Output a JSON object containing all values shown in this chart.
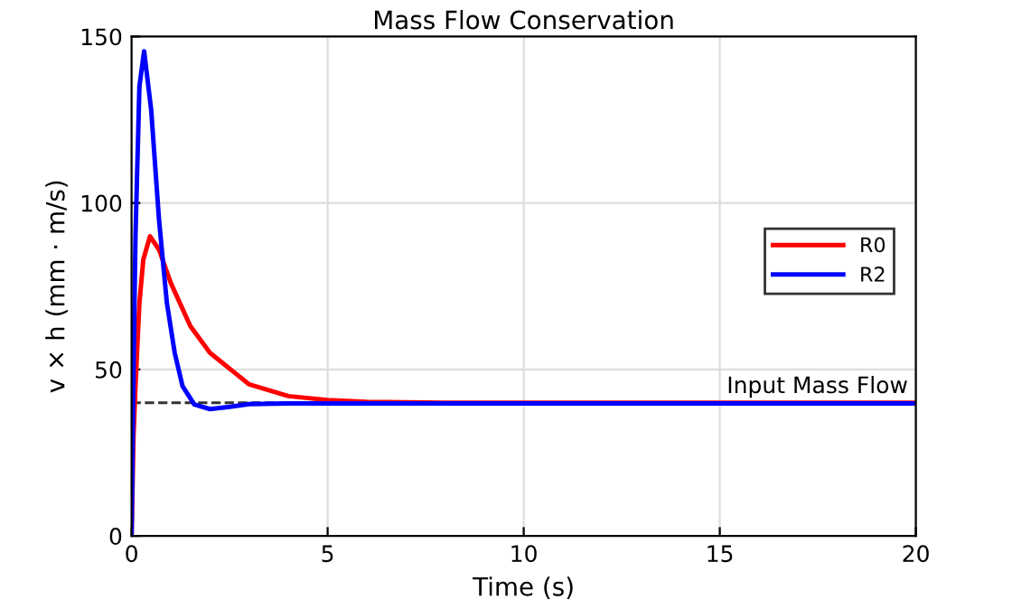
{
  "chart_data": {
    "type": "line",
    "title": "Mass Flow Conservation",
    "xlabel": "Time (s)",
    "ylabel": "v × h (mm · m/s)",
    "series": [
      {
        "name": "R0",
        "color": "#ff0000",
        "x": [
          0,
          0.05,
          0.1,
          0.2,
          0.3,
          0.47,
          0.7,
          1,
          1.5,
          2,
          3,
          4,
          5,
          6,
          8,
          10,
          20
        ],
        "values": [
          0,
          30,
          45,
          70,
          83,
          90,
          86,
          76,
          63,
          55,
          45.5,
          42,
          40.8,
          40.3,
          40,
          40,
          40
        ]
      },
      {
        "name": "R2",
        "color": "#0000ff",
        "x": [
          0,
          0.05,
          0.1,
          0.2,
          0.32,
          0.5,
          0.7,
          0.9,
          1.1,
          1.3,
          1.6,
          2,
          2.5,
          3,
          4,
          10,
          20
        ],
        "values": [
          0,
          50,
          90,
          135,
          145.6,
          128,
          95,
          70,
          55,
          45,
          39.5,
          38.1,
          38.8,
          39.6,
          39.8,
          39.8,
          39.8
        ]
      }
    ],
    "ref_lines": [
      {
        "axis": "y",
        "value": 40,
        "label": "Input Mass Flow",
        "color": "#333333",
        "line_style": "dashed"
      }
    ],
    "xlim": [
      0,
      20
    ],
    "ylim": [
      0,
      150
    ],
    "xticks": [
      0,
      5,
      10,
      15,
      20
    ],
    "yticks": [
      0,
      50,
      100,
      150
    ],
    "grid": true,
    "legend": "right",
    "line_style": "solid"
  }
}
